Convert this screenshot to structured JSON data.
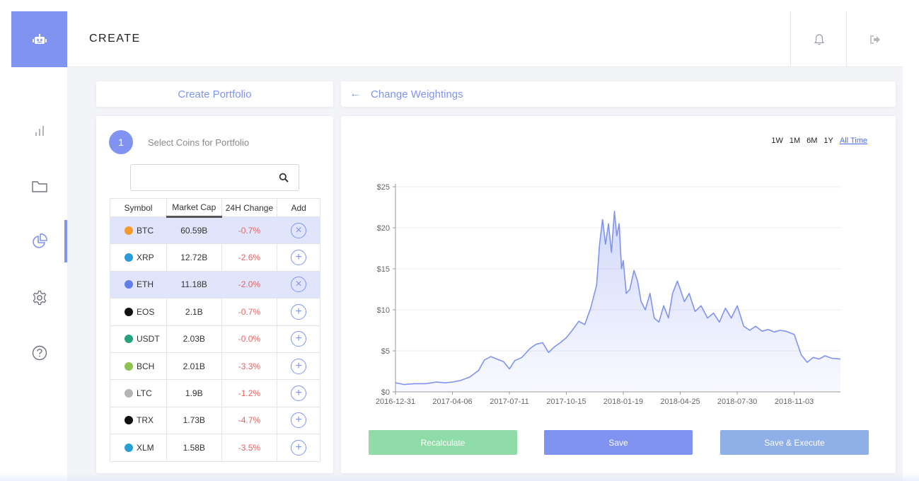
{
  "app": {
    "title": "CREATE",
    "colors": {
      "accent": "#8093f1",
      "negative": "#e36464",
      "green": "#8fdca8",
      "steel": "#8fafe8"
    }
  },
  "left_panel": {
    "header": "Create Portfolio",
    "step_number": "1",
    "step_label": "Select Coins for Portfolio",
    "search": {
      "value": "",
      "placeholder": ""
    },
    "columns": [
      "Symbol",
      "Market Cap",
      "24H Change",
      "Add"
    ],
    "coins": [
      {
        "symbol": "BTC",
        "market_cap": "60.59B",
        "change": "-0.7%",
        "selected": true,
        "icon_color": "#f39a2c"
      },
      {
        "symbol": "XRP",
        "market_cap": "12.72B",
        "change": "-2.6%",
        "selected": false,
        "icon_color": "#2b9ad8"
      },
      {
        "symbol": "ETH",
        "market_cap": "11.18B",
        "change": "-2.0%",
        "selected": true,
        "icon_color": "#627eea"
      },
      {
        "symbol": "EOS",
        "market_cap": "2.1B",
        "change": "-0.7%",
        "selected": false,
        "icon_color": "#111111"
      },
      {
        "symbol": "USDT",
        "market_cap": "2.03B",
        "change": "-0.0%",
        "selected": false,
        "icon_color": "#26a17b"
      },
      {
        "symbol": "BCH",
        "market_cap": "2.01B",
        "change": "-3.3%",
        "selected": false,
        "icon_color": "#8dc351"
      },
      {
        "symbol": "LTC",
        "market_cap": "1.9B",
        "change": "-1.2%",
        "selected": false,
        "icon_color": "#b5b5b5"
      },
      {
        "symbol": "TRX",
        "market_cap": "1.73B",
        "change": "-4.7%",
        "selected": false,
        "icon_color": "#111111"
      },
      {
        "symbol": "XLM",
        "market_cap": "1.58B",
        "change": "-3.5%",
        "selected": false,
        "icon_color": "#2a9fd6"
      }
    ]
  },
  "right_panel": {
    "header": "Change Weightings",
    "ranges": [
      "1W",
      "1M",
      "6M",
      "1Y",
      "All Time"
    ],
    "active_range": "All Time",
    "buttons": {
      "recalculate": "Recalculate",
      "save": "Save",
      "save_execute": "Save & Execute"
    }
  },
  "chart_data": {
    "type": "area",
    "title": "",
    "xlabel": "",
    "ylabel": "",
    "ylim": [
      0,
      25
    ],
    "yticks": [
      "$0",
      "$5",
      "$10",
      "$15",
      "$20",
      "$25"
    ],
    "xticks": [
      "2016-12-31",
      "2017-04-06",
      "2017-07-11",
      "2017-10-15",
      "2018-01-19",
      "2018-04-25",
      "2018-07-30",
      "2018-11-03"
    ],
    "grid": true,
    "series": [
      {
        "x": [
          "2016-12-31",
          "2017-01-15",
          "2017-02-01",
          "2017-02-20",
          "2017-03-10",
          "2017-03-25",
          "2017-04-06",
          "2017-04-20",
          "2017-05-05",
          "2017-05-20",
          "2017-05-30",
          "2017-06-10",
          "2017-06-20",
          "2017-07-01",
          "2017-07-11",
          "2017-07-20",
          "2017-08-01",
          "2017-08-15",
          "2017-08-25",
          "2017-09-05",
          "2017-09-15",
          "2017-09-25",
          "2017-10-05",
          "2017-10-15",
          "2017-10-25",
          "2017-11-05",
          "2017-11-15",
          "2017-11-25",
          "2017-12-05",
          "2017-12-10",
          "2017-12-15",
          "2017-12-20",
          "2017-12-25",
          "2017-12-30",
          "2018-01-04",
          "2018-01-08",
          "2018-01-12",
          "2018-01-16",
          "2018-01-19",
          "2018-01-24",
          "2018-01-30",
          "2018-02-06",
          "2018-02-12",
          "2018-02-18",
          "2018-02-25",
          "2018-03-05",
          "2018-03-12",
          "2018-03-20",
          "2018-03-28",
          "2018-04-05",
          "2018-04-12",
          "2018-04-20",
          "2018-04-25",
          "2018-05-02",
          "2018-05-10",
          "2018-05-20",
          "2018-05-30",
          "2018-06-10",
          "2018-06-20",
          "2018-06-30",
          "2018-07-10",
          "2018-07-20",
          "2018-07-30",
          "2018-08-10",
          "2018-08-20",
          "2018-08-30",
          "2018-09-10",
          "2018-09-20",
          "2018-09-30",
          "2018-10-10",
          "2018-10-20",
          "2018-11-03",
          "2018-11-15",
          "2018-11-25",
          "2018-12-05",
          "2018-12-15",
          "2018-12-25",
          "2019-01-05",
          "2019-01-20"
        ],
        "values": [
          1.1,
          0.9,
          1.0,
          1.0,
          1.2,
          1.1,
          1.2,
          1.4,
          1.8,
          2.6,
          3.9,
          4.3,
          4.0,
          3.7,
          2.8,
          3.8,
          4.2,
          5.3,
          5.8,
          6.0,
          4.8,
          5.5,
          6.0,
          6.6,
          7.5,
          8.6,
          8.2,
          10.2,
          13.0,
          18.0,
          21.0,
          18.0,
          20.5,
          17.0,
          22.0,
          19.0,
          20.5,
          15.0,
          16.0,
          12.0,
          12.5,
          14.8,
          13.5,
          11.0,
          10.0,
          12.0,
          9.0,
          8.5,
          10.5,
          9.0,
          12.0,
          13.5,
          12.5,
          11.0,
          12.0,
          9.8,
          10.5,
          9.0,
          9.6,
          8.5,
          10.2,
          9.0,
          10.5,
          8.0,
          7.5,
          8.0,
          7.4,
          7.6,
          7.3,
          7.5,
          7.4,
          7.0,
          4.5,
          3.6,
          4.2,
          4.0,
          4.4,
          4.1,
          4.0
        ]
      }
    ]
  }
}
